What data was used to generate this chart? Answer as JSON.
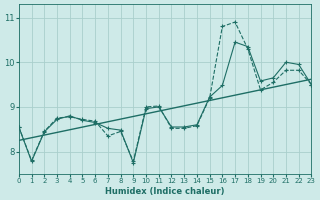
{
  "bg_color": "#ceeae8",
  "line_color": "#1e6e65",
  "grid_color": "#aacfcc",
  "xlabel": "Humidex (Indice chaleur)",
  "xlim": [
    0,
    23
  ],
  "ylim": [
    7.5,
    11.3
  ],
  "yticks": [
    8,
    9,
    10,
    11
  ],
  "xticks": [
    0,
    1,
    2,
    3,
    4,
    5,
    6,
    7,
    8,
    9,
    10,
    11,
    12,
    13,
    14,
    15,
    16,
    17,
    18,
    19,
    20,
    21,
    22,
    23
  ],
  "series_dashed_x": [
    0,
    1,
    2,
    3,
    4,
    5,
    6,
    7,
    8,
    9,
    10,
    11,
    12,
    13,
    14,
    15,
    16,
    17,
    18,
    19,
    20,
    21,
    22,
    23
  ],
  "series_dashed_y": [
    8.55,
    7.8,
    8.45,
    8.75,
    8.78,
    8.72,
    8.68,
    8.35,
    8.45,
    7.78,
    9.0,
    9.02,
    8.52,
    8.52,
    8.58,
    9.2,
    10.8,
    10.9,
    10.3,
    9.38,
    9.55,
    9.82,
    9.82,
    9.5
  ],
  "series_solid_x": [
    0,
    1,
    2,
    3,
    4,
    5,
    6,
    7,
    8,
    9,
    10,
    11,
    12,
    13,
    14,
    15,
    16,
    17,
    18,
    19,
    20,
    21,
    22,
    23
  ],
  "series_solid_y": [
    8.55,
    7.78,
    8.44,
    8.72,
    8.8,
    8.7,
    8.65,
    8.52,
    8.48,
    7.75,
    8.96,
    9.0,
    8.55,
    8.55,
    8.6,
    9.22,
    9.48,
    10.45,
    10.35,
    9.58,
    9.65,
    10.0,
    9.95,
    9.5
  ],
  "trend_x": [
    0,
    23
  ],
  "trend_y": [
    8.25,
    9.62
  ]
}
